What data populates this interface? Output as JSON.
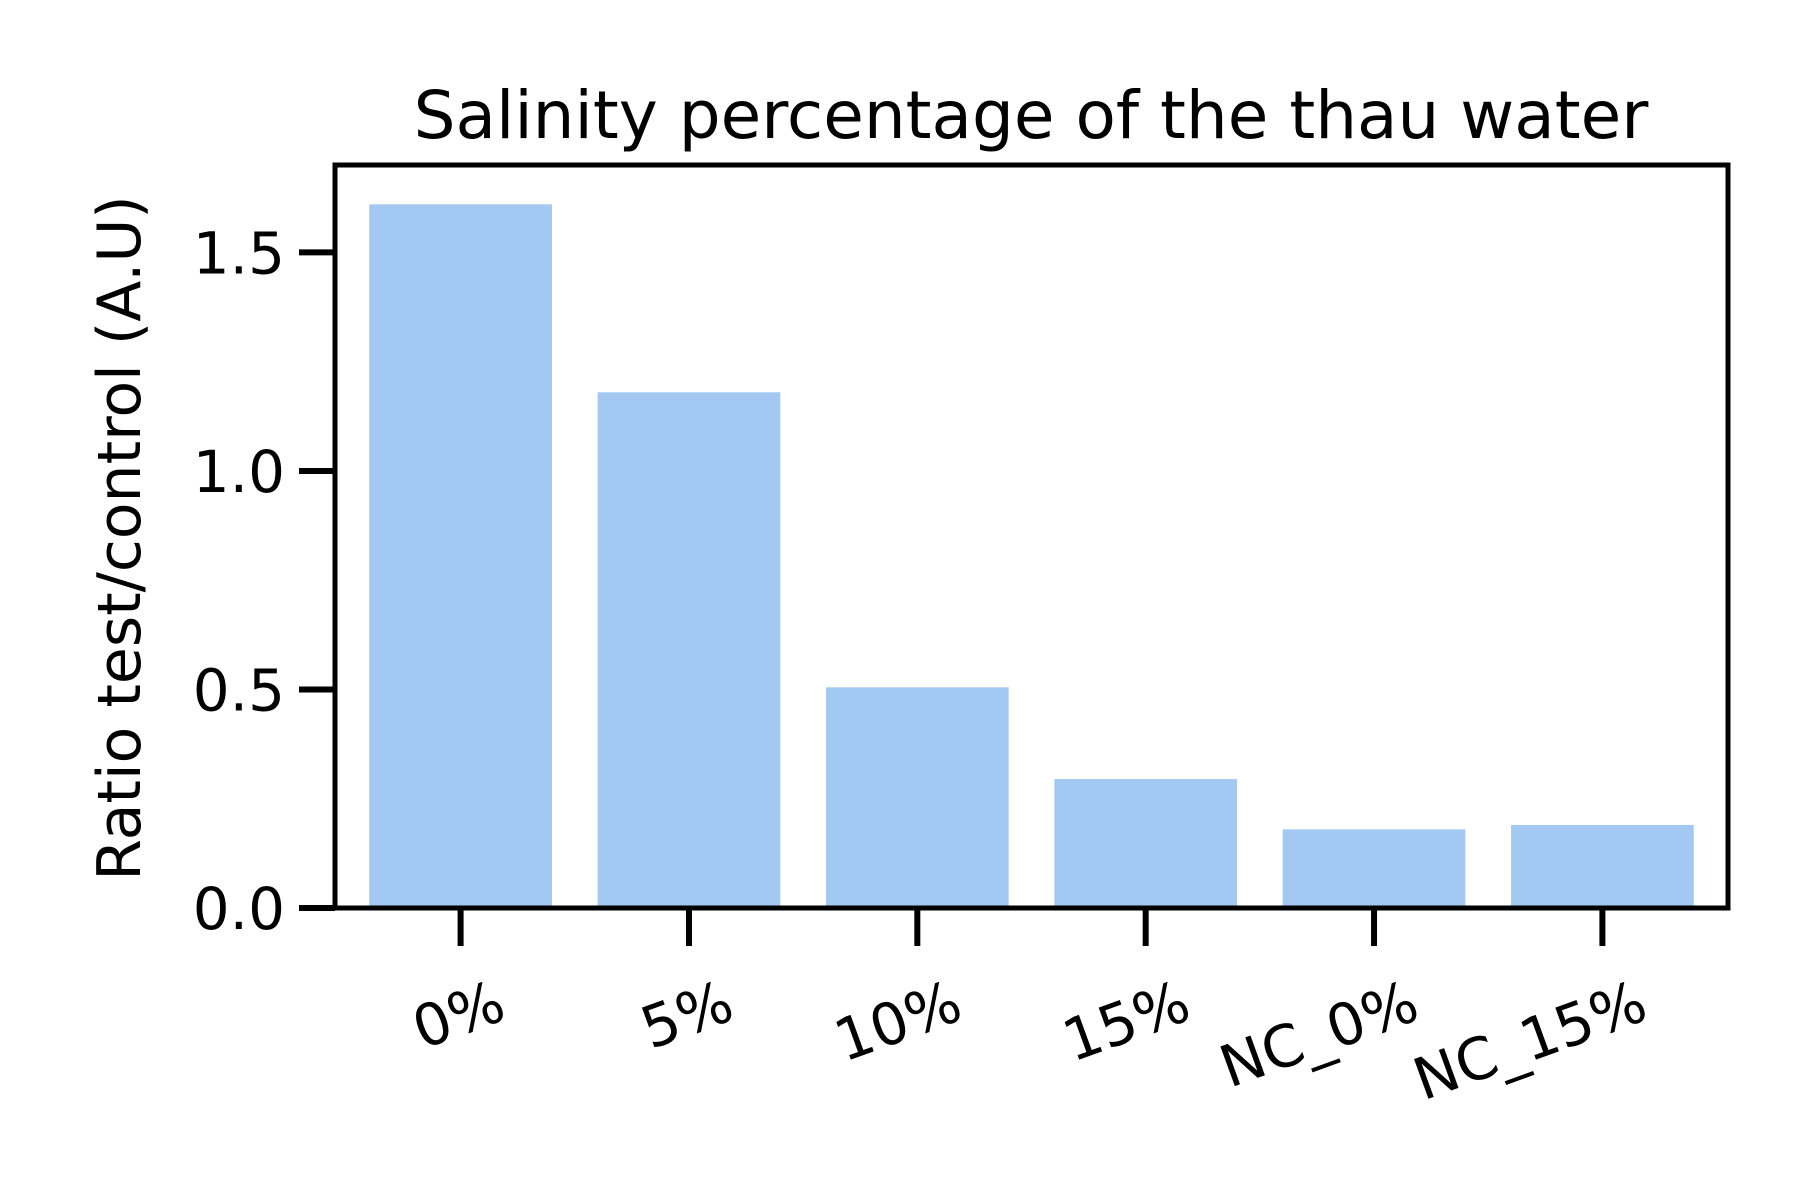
{
  "chart_data": {
    "type": "bar",
    "title": "Salinity percentage of the thau water",
    "xlabel": "",
    "ylabel": "Ratio test/control (A.U)",
    "categories": [
      "0%",
      "5%",
      "10%",
      "15%",
      "NC_0%",
      "NC_15%"
    ],
    "values": [
      1.61,
      1.18,
      0.505,
      0.295,
      0.18,
      0.19
    ],
    "ylim": [
      0,
      1.7
    ],
    "yticks": [
      0.0,
      0.5,
      1.0,
      1.5
    ],
    "ytick_labels": [
      "0.0",
      "0.5",
      "1.0",
      "1.5"
    ],
    "bar_color": "#a3c8f2",
    "grid": false,
    "legend": "none"
  }
}
